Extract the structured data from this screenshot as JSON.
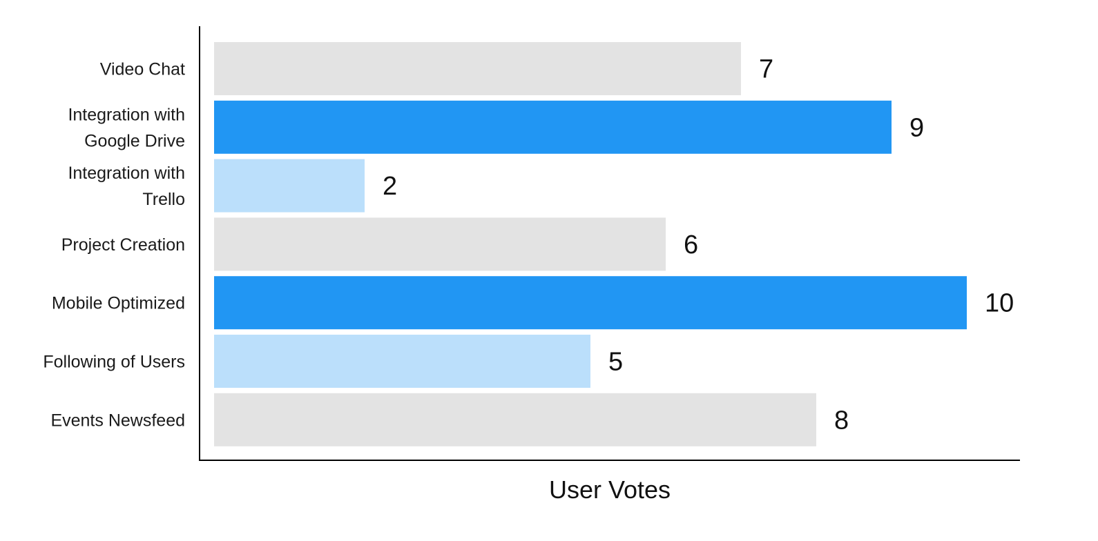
{
  "chart_data": {
    "type": "bar",
    "orientation": "horizontal",
    "categories": [
      "Video Chat",
      "Integration with Google Drive",
      "Integration with Trello",
      "Project Creation",
      "Mobile Optimized",
      "Following of Users",
      "Events Newsfeed"
    ],
    "category_label_lines": [
      [
        "Video Chat"
      ],
      [
        "Integration with",
        "Google Drive"
      ],
      [
        "Integration with",
        "Trello"
      ],
      [
        "Project Creation"
      ],
      [
        "Mobile Optimized"
      ],
      [
        "Following of Users"
      ],
      [
        "Events Newsfeed"
      ]
    ],
    "values": [
      7,
      9,
      2,
      6,
      10,
      5,
      8
    ],
    "bar_colors": [
      "#e3e3e3",
      "#2196f3",
      "#bbdffb",
      "#e3e3e3",
      "#2196f3",
      "#bbdffb",
      "#e3e3e3"
    ],
    "value_labels": [
      "7",
      "9",
      "2",
      "6",
      "10",
      "5",
      "8"
    ],
    "title": "",
    "xlabel": "User Votes",
    "ylabel": "",
    "xlim": [
      0,
      10
    ],
    "grid": false,
    "legend": false,
    "axis_color": "#000000"
  }
}
